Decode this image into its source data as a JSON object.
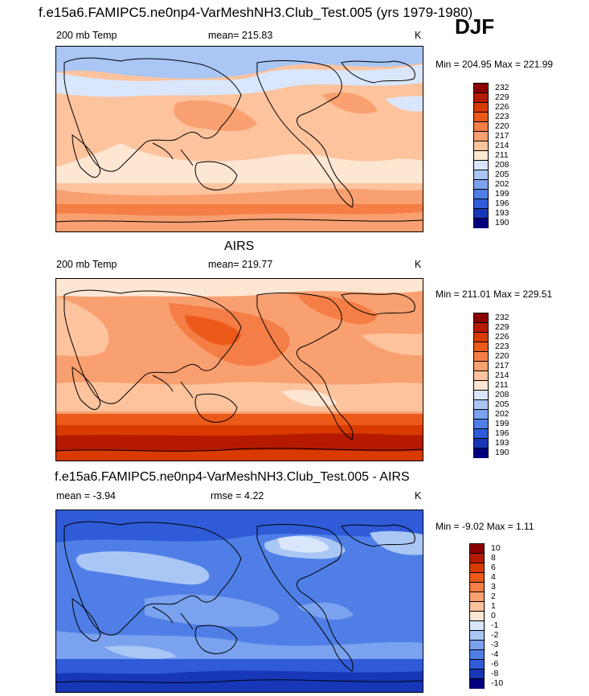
{
  "header": {
    "title": "f.e15a6.FAMIPC5.ne0np4-VarMeshNH3.Club_Test.005 (yrs 1979-1980)",
    "season": "DJF"
  },
  "panels": [
    {
      "id": "model",
      "title": "",
      "left_label": "200 mb Temp",
      "center_label": "mean= 215.83",
      "units": "K",
      "min_max": "Min = 204.95 Max = 221.99",
      "colorbar": {
        "labels": [
          "232",
          "229",
          "226",
          "223",
          "220",
          "217",
          "214",
          "211",
          "208",
          "205",
          "202",
          "199",
          "196",
          "193",
          "190"
        ],
        "colors": [
          "#8b0000",
          "#b51a00",
          "#d83a00",
          "#ec5a1a",
          "#f47e45",
          "#f9a070",
          "#fcc39d",
          "#fde6d2",
          "#d9e6fb",
          "#a9c6f5",
          "#7ba2ee",
          "#4f7fe6",
          "#2f5bd8",
          "#1737b8",
          "#00007f"
        ]
      },
      "field": {
        "mean": 215.83,
        "min": 204.95,
        "max": 221.99
      }
    },
    {
      "id": "obs",
      "title": "AIRS",
      "left_label": "200 mb Temp",
      "center_label": "mean= 219.77",
      "units": "K",
      "min_max": "Min = 211.01 Max = 229.51",
      "colorbar": {
        "labels": [
          "232",
          "229",
          "226",
          "223",
          "220",
          "217",
          "214",
          "211",
          "208",
          "205",
          "202",
          "199",
          "196",
          "193",
          "190"
        ],
        "colors": [
          "#8b0000",
          "#b51a00",
          "#d83a00",
          "#ec5a1a",
          "#f47e45",
          "#f9a070",
          "#fcc39d",
          "#fde6d2",
          "#d9e6fb",
          "#a9c6f5",
          "#7ba2ee",
          "#4f7fe6",
          "#2f5bd8",
          "#1737b8",
          "#00007f"
        ]
      },
      "field": {
        "mean": 219.77,
        "min": 211.01,
        "max": 229.51
      }
    },
    {
      "id": "diff",
      "title": "f.e15a6.FAMIPC5.ne0np4-VarMeshNH3.Club_Test.005 - AIRS",
      "left_label": "mean =  -3.94",
      "center_label": "rmse =   4.22",
      "units": "K",
      "min_max": "Min =  -9.02 Max =   1.11",
      "colorbar": {
        "labels": [
          "10",
          "8",
          "6",
          "4",
          "3",
          "2",
          "1",
          "0",
          "-1",
          "-2",
          "-3",
          "-4",
          "-6",
          "-8",
          "-10"
        ],
        "colors": [
          "#8b0000",
          "#b51a00",
          "#d83a00",
          "#ec5a1a",
          "#f47e45",
          "#f9a070",
          "#fcc39d",
          "#fde6d2",
          "#d9e6fb",
          "#a9c6f5",
          "#7ba2ee",
          "#4f7fe6",
          "#2f5bd8",
          "#1737b8",
          "#00007f"
        ]
      },
      "field": {
        "mean": -3.94,
        "rmse": 4.22,
        "min": -9.02,
        "max": 1.11
      }
    }
  ]
}
